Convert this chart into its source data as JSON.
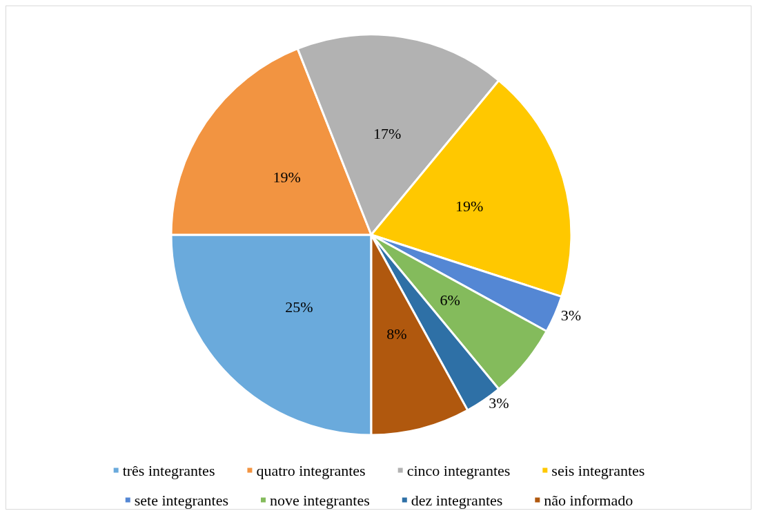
{
  "chart_data": {
    "type": "pie",
    "categories": [
      "três integrantes",
      "quatro integrantes",
      "cinco integrantes",
      "seis integrantes",
      "sete integrantes",
      "nove integrantes",
      "dez integrantes",
      "não informado"
    ],
    "values": [
      25,
      19,
      17,
      19,
      3,
      6,
      3,
      8
    ],
    "colors": [
      "#6aaadc",
      "#f29441",
      "#b2b2b2",
      "#ffc800",
      "#5487d4",
      "#84bb5c",
      "#2e70a6",
      "#b0580e"
    ],
    "value_labels": [
      "25%",
      "19%",
      "17%",
      "19%",
      "3%",
      "6%",
      "3%",
      "8%"
    ],
    "legend": "bottom"
  }
}
